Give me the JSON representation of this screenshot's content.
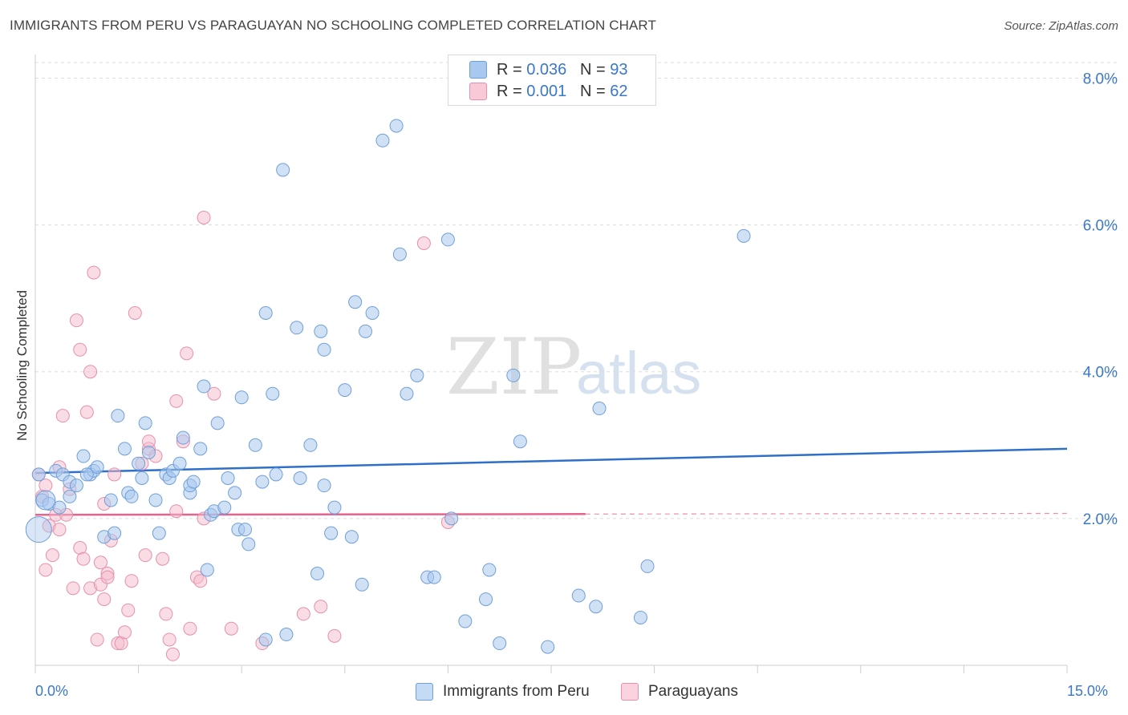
{
  "title": "IMMIGRANTS FROM PERU VS PARAGUAYAN NO SCHOOLING COMPLETED CORRELATION CHART",
  "source": "Source: ZipAtlas.com",
  "watermark": {
    "part1": "ZIP",
    "part2": "atlas"
  },
  "legend_top": {
    "rows": [
      {
        "r_label": "R = ",
        "r_value": "0.036",
        "n_label": "N = ",
        "n_value": "93"
      },
      {
        "r_label": "R = ",
        "r_value": "0.001",
        "n_label": "N = ",
        "n_value": "62"
      }
    ]
  },
  "legend_bottom": {
    "series1": "Immigrants from Peru",
    "series2": "Paraguayans"
  },
  "x_labels": {
    "min": "0.0%",
    "max": "15.0%"
  },
  "colors": {
    "blue_fill": "#a9c8ef",
    "blue_stroke": "#6f9fd8",
    "blue_line": "#2f6fc9",
    "pink_fill": "#f5b9cc",
    "pink_stroke": "#e690ad",
    "pink_line": "#e8628e",
    "grid": "#dddddd",
    "tick_label": "#3a78c9"
  },
  "chart_data": {
    "type": "scatter",
    "title": "IMMIGRANTS FROM PERU VS PARAGUAYAN NO SCHOOLING COMPLETED CORRELATION CHART",
    "xlabel": "",
    "ylabel": "No Schooling Completed",
    "xlim": [
      0,
      15
    ],
    "ylim": [
      0,
      8.3
    ],
    "yticks": [
      2,
      4,
      6,
      8
    ],
    "ytick_labels": [
      "2.0%",
      "4.0%",
      "6.0%",
      "8.0%"
    ],
    "series": [
      {
        "name": "Immigrants from Peru",
        "r": 0.036,
        "n": 93,
        "trend": {
          "x": [
            0,
            15
          ],
          "y": [
            2.62,
            2.95
          ],
          "dashed_after": null
        },
        "points": [
          [
            0.1,
            2.25
          ],
          [
            0.2,
            2.2
          ],
          [
            0.3,
            2.65
          ],
          [
            0.35,
            2.15
          ],
          [
            0.4,
            2.6
          ],
          [
            0.5,
            2.5
          ],
          [
            0.5,
            2.3
          ],
          [
            0.7,
            2.85
          ],
          [
            0.8,
            2.6
          ],
          [
            0.85,
            2.65
          ],
          [
            0.9,
            2.7
          ],
          [
            1.0,
            1.75
          ],
          [
            1.1,
            2.25
          ],
          [
            1.15,
            1.8
          ],
          [
            1.2,
            3.4
          ],
          [
            1.3,
            2.95
          ],
          [
            1.35,
            2.35
          ],
          [
            1.4,
            2.3
          ],
          [
            1.5,
            2.75
          ],
          [
            1.55,
            2.55
          ],
          [
            1.6,
            3.3
          ],
          [
            1.65,
            2.9
          ],
          [
            1.75,
            2.25
          ],
          [
            1.8,
            1.8
          ],
          [
            1.9,
            2.6
          ],
          [
            1.95,
            2.55
          ],
          [
            2.0,
            2.65
          ],
          [
            2.1,
            2.75
          ],
          [
            2.15,
            3.1
          ],
          [
            2.25,
            2.35
          ],
          [
            2.25,
            2.45
          ],
          [
            2.3,
            2.5
          ],
          [
            2.4,
            2.95
          ],
          [
            2.45,
            3.8
          ],
          [
            2.5,
            1.3
          ],
          [
            2.55,
            2.05
          ],
          [
            2.6,
            2.1
          ],
          [
            2.65,
            3.3
          ],
          [
            2.75,
            2.15
          ],
          [
            2.8,
            2.55
          ],
          [
            2.9,
            2.35
          ],
          [
            2.95,
            1.85
          ],
          [
            3.0,
            3.65
          ],
          [
            3.05,
            1.85
          ],
          [
            3.1,
            1.65
          ],
          [
            3.2,
            3.0
          ],
          [
            3.3,
            2.5
          ],
          [
            3.35,
            4.8
          ],
          [
            3.35,
            0.35
          ],
          [
            3.45,
            3.7
          ],
          [
            3.5,
            2.6
          ],
          [
            3.6,
            6.75
          ],
          [
            3.65,
            0.42
          ],
          [
            3.8,
            4.6
          ],
          [
            3.85,
            2.55
          ],
          [
            4.0,
            3.0
          ],
          [
            4.1,
            1.25
          ],
          [
            4.15,
            4.55
          ],
          [
            4.2,
            4.3
          ],
          [
            4.2,
            2.45
          ],
          [
            4.3,
            1.8
          ],
          [
            4.35,
            2.15
          ],
          [
            4.5,
            3.75
          ],
          [
            4.6,
            1.75
          ],
          [
            4.65,
            4.95
          ],
          [
            4.75,
            1.1
          ],
          [
            4.8,
            4.55
          ],
          [
            4.9,
            4.8
          ],
          [
            5.05,
            7.15
          ],
          [
            5.25,
            7.35
          ],
          [
            5.3,
            5.6
          ],
          [
            5.4,
            3.7
          ],
          [
            5.55,
            3.95
          ],
          [
            5.7,
            1.2
          ],
          [
            5.8,
            1.2
          ],
          [
            6.0,
            5.8
          ],
          [
            6.05,
            2.0
          ],
          [
            6.25,
            0.6
          ],
          [
            6.6,
            1.3
          ],
          [
            6.55,
            0.9
          ],
          [
            6.75,
            0.3
          ],
          [
            6.95,
            3.95
          ],
          [
            7.05,
            3.05
          ],
          [
            7.45,
            0.25
          ],
          [
            7.9,
            0.95
          ],
          [
            8.15,
            0.8
          ],
          [
            8.2,
            3.5
          ],
          [
            8.8,
            0.65
          ],
          [
            8.9,
            1.35
          ],
          [
            10.3,
            5.85
          ],
          [
            0.05,
            2.6
          ],
          [
            0.6,
            2.45
          ],
          [
            0.75,
            2.6
          ]
        ]
      },
      {
        "name": "Paraguayans",
        "r": 0.001,
        "n": 62,
        "trend": {
          "x": [
            0,
            15
          ],
          "y": [
            2.05,
            2.07
          ],
          "dashed_after": 8
        },
        "points": [
          [
            0.05,
            2.6
          ],
          [
            0.1,
            2.3
          ],
          [
            0.15,
            1.3
          ],
          [
            0.2,
            1.9
          ],
          [
            0.25,
            1.5
          ],
          [
            0.3,
            2.05
          ],
          [
            0.35,
            1.85
          ],
          [
            0.35,
            2.7
          ],
          [
            0.4,
            3.4
          ],
          [
            0.45,
            2.05
          ],
          [
            0.5,
            2.4
          ],
          [
            0.55,
            1.05
          ],
          [
            0.6,
            4.7
          ],
          [
            0.65,
            4.3
          ],
          [
            0.65,
            1.6
          ],
          [
            0.7,
            1.45
          ],
          [
            0.75,
            3.45
          ],
          [
            0.8,
            1.05
          ],
          [
            0.8,
            4.0
          ],
          [
            0.85,
            5.35
          ],
          [
            0.9,
            0.35
          ],
          [
            0.95,
            1.4
          ],
          [
            0.95,
            1.1
          ],
          [
            1.0,
            0.9
          ],
          [
            1.0,
            2.2
          ],
          [
            1.05,
            1.25
          ],
          [
            1.05,
            1.2
          ],
          [
            1.1,
            1.7
          ],
          [
            1.15,
            2.6
          ],
          [
            1.2,
            0.3
          ],
          [
            1.25,
            0.3
          ],
          [
            1.3,
            0.45
          ],
          [
            1.35,
            0.75
          ],
          [
            1.4,
            1.15
          ],
          [
            1.45,
            4.8
          ],
          [
            1.55,
            2.75
          ],
          [
            1.6,
            1.5
          ],
          [
            1.65,
            2.95
          ],
          [
            1.65,
            3.05
          ],
          [
            1.75,
            2.85
          ],
          [
            1.9,
            0.7
          ],
          [
            1.95,
            0.35
          ],
          [
            2.0,
            0.15
          ],
          [
            2.05,
            2.1
          ],
          [
            2.05,
            3.6
          ],
          [
            2.15,
            3.05
          ],
          [
            2.2,
            4.25
          ],
          [
            2.25,
            0.5
          ],
          [
            2.35,
            1.2
          ],
          [
            2.4,
            1.15
          ],
          [
            2.45,
            2.0
          ],
          [
            2.45,
            6.1
          ],
          [
            2.6,
            3.7
          ],
          [
            2.85,
            0.5
          ],
          [
            3.3,
            0.3
          ],
          [
            3.9,
            0.7
          ],
          [
            4.15,
            0.8
          ],
          [
            4.35,
            0.4
          ],
          [
            5.65,
            5.75
          ],
          [
            6.0,
            1.95
          ],
          [
            1.85,
            1.45
          ],
          [
            0.15,
            2.45
          ]
        ]
      }
    ]
  }
}
